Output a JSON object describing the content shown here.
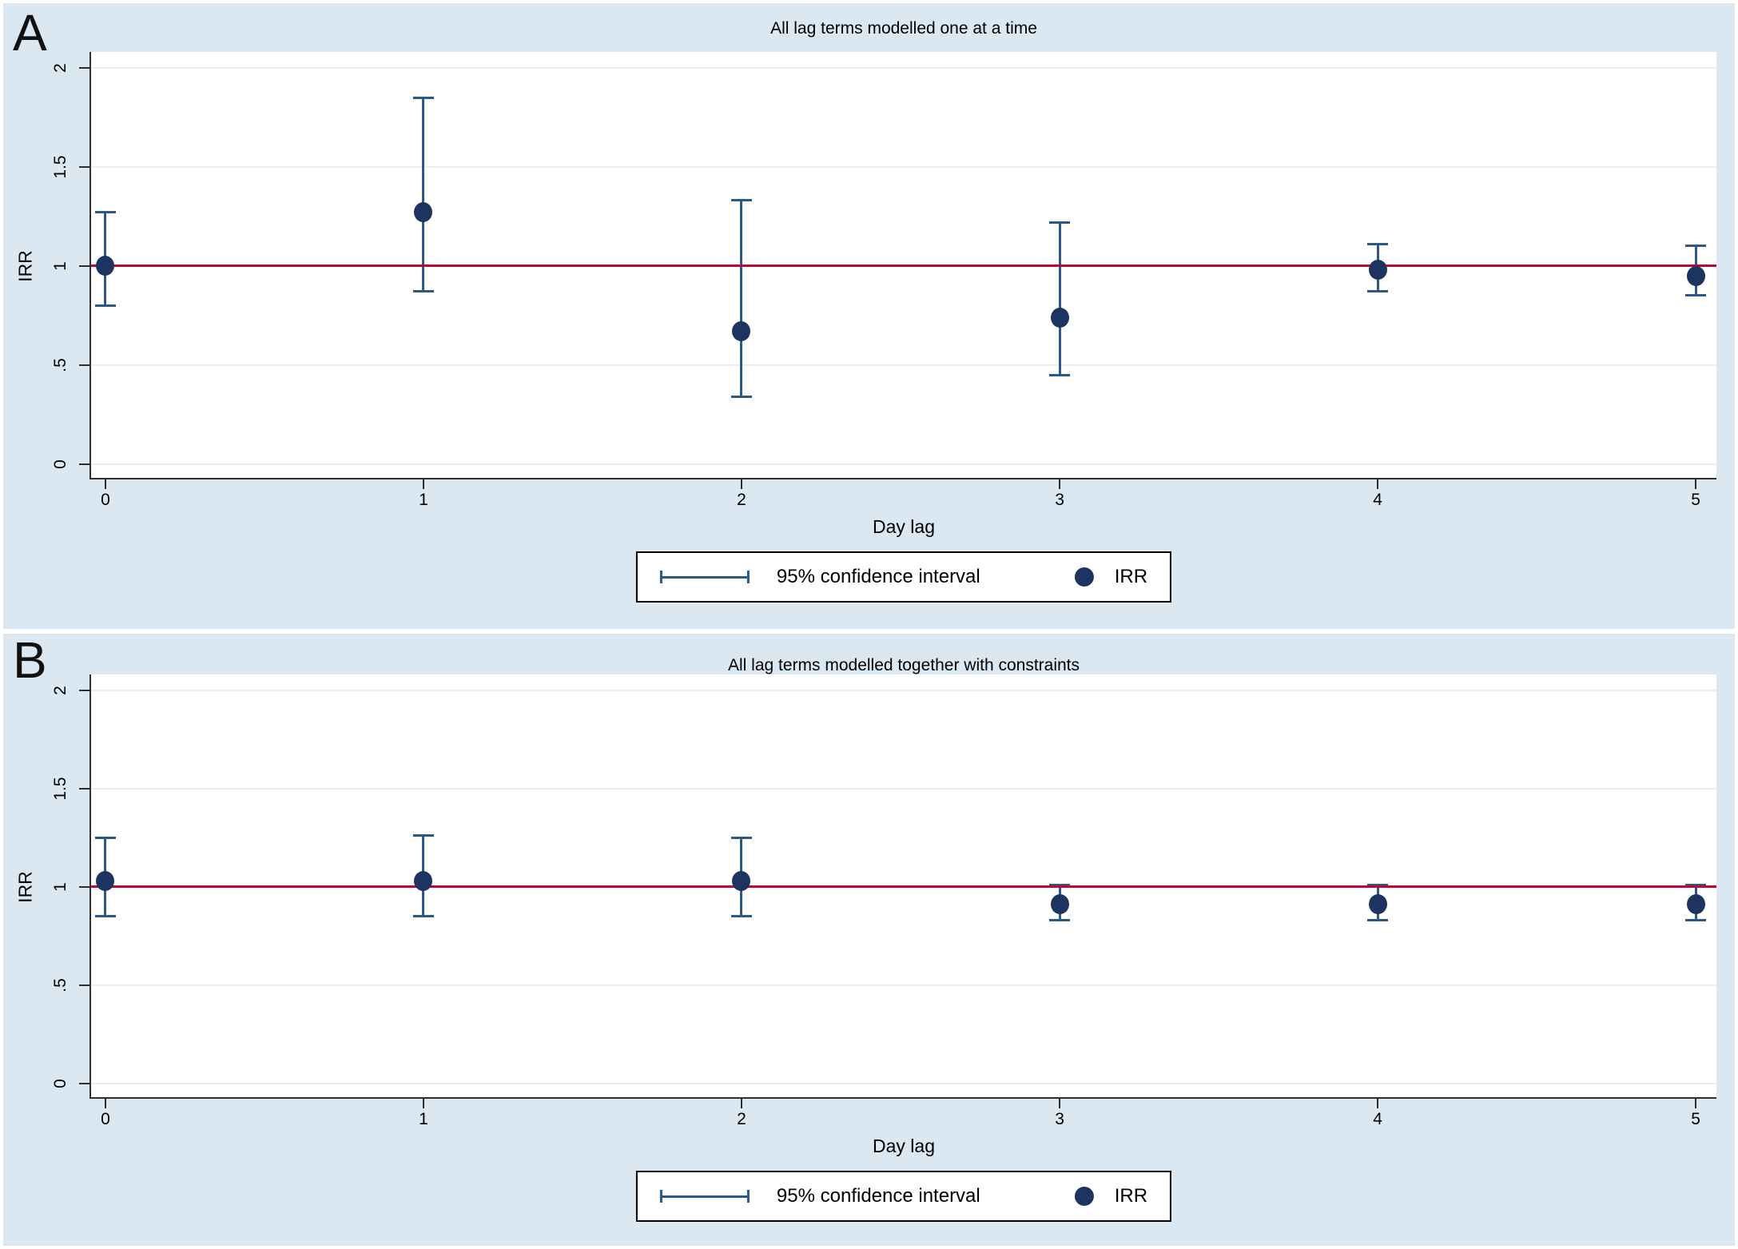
{
  "figure": {
    "panels": [
      {
        "label": "A",
        "title": "All lag terms modelled one at a time",
        "xlabel": "Day lag",
        "ylabel": "IRR"
      },
      {
        "label": "B",
        "title": "All lag terms modelled together with constraints",
        "xlabel": "Day lag",
        "ylabel": "IRR"
      }
    ],
    "colors": {
      "background": "#dbe8f2",
      "plot_background": "#ffffff",
      "gridline": "#e6eef5",
      "axis": "#2f2f2f",
      "reference_line": "#c10534",
      "marker": "#1e3460",
      "error_bar": "#2d5986",
      "text": "#000000",
      "legend_border": "#000000"
    }
  },
  "chart_data": [
    {
      "type": "scatter",
      "panel": "A",
      "title": "All lag terms modelled one at a time",
      "xlabel": "Day lag",
      "ylabel": "IRR",
      "x": [
        0,
        1,
        2,
        3,
        4,
        5
      ],
      "series": [
        {
          "name": "IRR",
          "values": [
            1.0,
            1.27,
            0.67,
            0.74,
            0.98,
            0.95
          ]
        },
        {
          "name": "95% CI lower",
          "values": [
            0.8,
            0.87,
            0.34,
            0.45,
            0.87,
            0.85
          ]
        },
        {
          "name": "95% CI upper",
          "values": [
            1.27,
            1.85,
            1.33,
            1.22,
            1.11,
            1.1
          ]
        }
      ],
      "reference_line_y": 1,
      "xlim": [
        -0.045,
        5.065
      ],
      "ylim": [
        -0.07,
        2.08
      ],
      "xticks": [
        0,
        1,
        2,
        3,
        4,
        5
      ],
      "xtick_labels": [
        "0",
        "1",
        "2",
        "3",
        "4",
        "5"
      ],
      "yticks": [
        0,
        0.5,
        1,
        1.5,
        2
      ],
      "ytick_labels": [
        "0",
        ".5",
        "1",
        "1.5",
        "2"
      ],
      "grid": true,
      "legend_position": "bottom-center",
      "legend_entries": [
        "95% confidence interval",
        "IRR"
      ]
    },
    {
      "type": "scatter",
      "panel": "B",
      "title": "All lag terms modelled together with constraints",
      "xlabel": "Day lag",
      "ylabel": "IRR",
      "x": [
        0,
        1,
        2,
        3,
        4,
        5
      ],
      "series": [
        {
          "name": "IRR",
          "values": [
            1.03,
            1.03,
            1.03,
            0.91,
            0.91,
            0.91
          ]
        },
        {
          "name": "95% CI lower",
          "values": [
            0.85,
            0.85,
            0.85,
            0.83,
            0.83,
            0.83
          ]
        },
        {
          "name": "95% CI upper",
          "values": [
            1.25,
            1.26,
            1.25,
            1.01,
            1.01,
            1.01
          ]
        }
      ],
      "reference_line_y": 1,
      "xlim": [
        -0.045,
        5.065
      ],
      "ylim": [
        -0.07,
        2.08
      ],
      "xticks": [
        0,
        1,
        2,
        3,
        4,
        5
      ],
      "xtick_labels": [
        "0",
        "1",
        "2",
        "3",
        "4",
        "5"
      ],
      "yticks": [
        0,
        0.5,
        1,
        1.5,
        2
      ],
      "ytick_labels": [
        "0",
        ".5",
        "1",
        "1.5",
        "2"
      ],
      "grid": true,
      "legend_position": "bottom-center",
      "legend_entries": [
        "95% confidence interval",
        "IRR"
      ]
    }
  ]
}
